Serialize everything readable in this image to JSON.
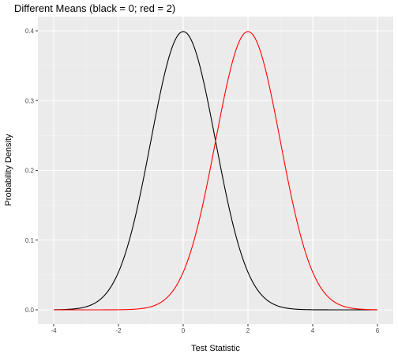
{
  "chart_data": {
    "type": "line",
    "title": "Different Means (black = 0; red = 2)",
    "xlabel": "Test Statistic",
    "ylabel": "Probability Density",
    "xlim": [
      -4,
      6
    ],
    "ylim": [
      0,
      0.4
    ],
    "x_ticks": [
      -4,
      -2,
      0,
      2,
      4,
      6
    ],
    "y_ticks": [
      0.0,
      0.1,
      0.2,
      0.3,
      0.4
    ],
    "x_tick_labels": [
      "-4",
      "-2",
      "0",
      "2",
      "4",
      "6"
    ],
    "y_tick_labels": [
      "0.0",
      "0.1",
      "0.2",
      "0.3",
      "0.4"
    ],
    "grid": true,
    "legend": "none",
    "series": [
      {
        "color": "#000000",
        "distribution": "normal",
        "mean": 0,
        "sd": 1,
        "x": [
          -4,
          -3.5,
          -3,
          -2.5,
          -2,
          -1.5,
          -1,
          -0.5,
          0,
          0.5,
          1,
          1.5,
          2,
          2.5,
          3,
          3.5,
          4,
          4.5,
          5,
          5.5,
          6
        ],
        "y": [
          0.0001,
          0.0009,
          0.0044,
          0.0175,
          0.054,
          0.1295,
          0.242,
          0.3521,
          0.3989,
          0.3521,
          0.242,
          0.1295,
          0.054,
          0.0175,
          0.0044,
          0.0009,
          0.0001,
          0.0,
          0.0,
          0.0,
          0.0
        ]
      },
      {
        "color": "#ff0000",
        "distribution": "normal",
        "mean": 2,
        "sd": 1,
        "x": [
          -4,
          -3.5,
          -3,
          -2.5,
          -2,
          -1.5,
          -1,
          -0.5,
          0,
          0.5,
          1,
          1.5,
          2,
          2.5,
          3,
          3.5,
          4,
          4.5,
          5,
          5.5,
          6
        ],
        "y": [
          0.0,
          0.0,
          0.0,
          0.0,
          0.0001,
          0.0009,
          0.0044,
          0.0175,
          0.054,
          0.1295,
          0.242,
          0.3521,
          0.3989,
          0.3521,
          0.242,
          0.1295,
          0.054,
          0.0175,
          0.0044,
          0.0009,
          0.0001
        ]
      }
    ]
  }
}
